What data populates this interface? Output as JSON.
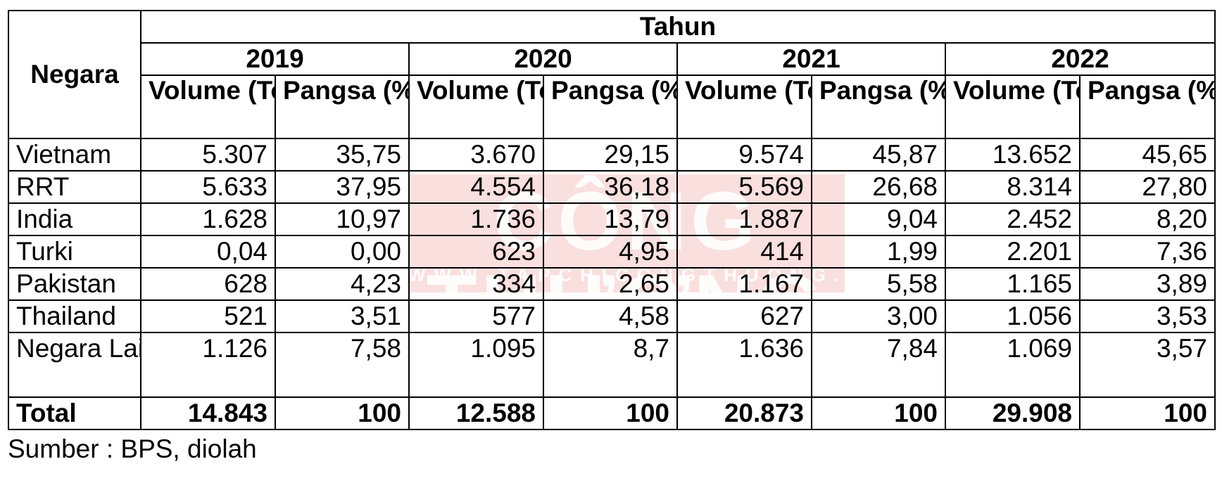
{
  "watermark": {
    "title": "CÔNG THƯƠNG",
    "subtitle": "WWW.TAPCHICONGTHUONG.VN"
  },
  "table": {
    "country_header": "Negara",
    "year_group_header": "Tahun",
    "years": [
      "2019",
      "2020",
      "2021",
      "2022"
    ],
    "sub_headers": {
      "volume": "Volume (Ton)",
      "share": "Pangsa (%)"
    },
    "rows": [
      {
        "country": "Vietnam",
        "cells": [
          "5.307",
          "35,75",
          "3.670",
          "29,15",
          "9.574",
          "45,87",
          "13.652",
          "45,65"
        ]
      },
      {
        "country": "RRT",
        "cells": [
          "5.633",
          "37,95",
          "4.554",
          "36,18",
          "5.569",
          "26,68",
          "8.314",
          "27,80"
        ]
      },
      {
        "country": "India",
        "cells": [
          "1.628",
          "10,97",
          "1.736",
          "13,79",
          "1.887",
          "9,04",
          "2.452",
          "8,20"
        ]
      },
      {
        "country": "Turki",
        "cells": [
          "0,04",
          "0,00",
          "623",
          "4,95",
          "414",
          "1,99",
          "2.201",
          "7,36"
        ]
      },
      {
        "country": "Pakistan",
        "cells": [
          "628",
          "4,23",
          "334",
          "2,65",
          "1.167",
          "5,58",
          "1.165",
          "3,89"
        ]
      },
      {
        "country": "Thailand",
        "cells": [
          "521",
          "3,51",
          "577",
          "4,58",
          "627",
          "3,00",
          "1.056",
          "3,53"
        ]
      },
      {
        "country": "Negara Lainnya",
        "cells": [
          "1.126",
          "7,58",
          "1.095",
          "8,7",
          "1.636",
          "7,84",
          "1.069",
          "3,57"
        ]
      }
    ],
    "total": {
      "label": "Total",
      "cells": [
        "14.843",
        "100",
        "12.588",
        "100",
        "20.873",
        "100",
        "29.908",
        "100"
      ]
    }
  },
  "source_note": "Sumber : BPS, diolah"
}
